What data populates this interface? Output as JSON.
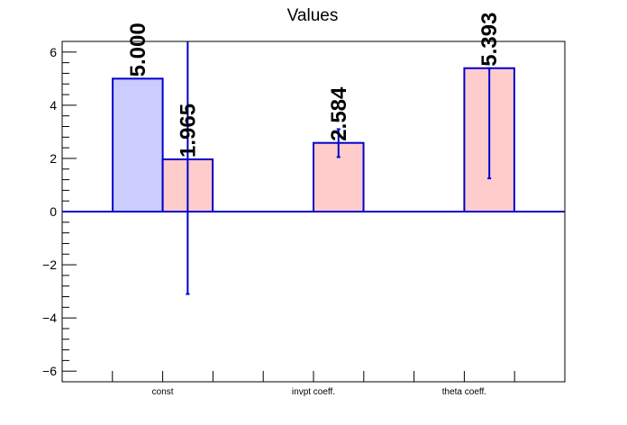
{
  "chart_data": {
    "type": "bar",
    "title": "Values",
    "categories": [
      "const",
      "invpt coeff.",
      "theta coeff."
    ],
    "ylim": [
      -6.4,
      6.4
    ],
    "yticks": [
      -6,
      -4,
      -2,
      0,
      2,
      4,
      6
    ],
    "grid": false,
    "series": [
      {
        "color": "#ccccff",
        "stroke": "#0000cc",
        "bars": [
          {
            "category": "const",
            "value": 5.0,
            "label": "5.000"
          }
        ]
      },
      {
        "color": "#ffcccc",
        "stroke": "#0000cc",
        "bars": [
          {
            "category": "const",
            "value": 1.965,
            "label": "1.965",
            "err_low": -3.1,
            "err_high": 6.4
          },
          {
            "category": "invpt coeff.",
            "value": 2.584,
            "label": "2.584",
            "err_low": 2.05,
            "err_high": 3.1
          },
          {
            "category": "theta coeff.",
            "value": 5.393,
            "label": "5.393",
            "err_low": 1.25,
            "err_high": 5.393
          }
        ]
      }
    ]
  }
}
